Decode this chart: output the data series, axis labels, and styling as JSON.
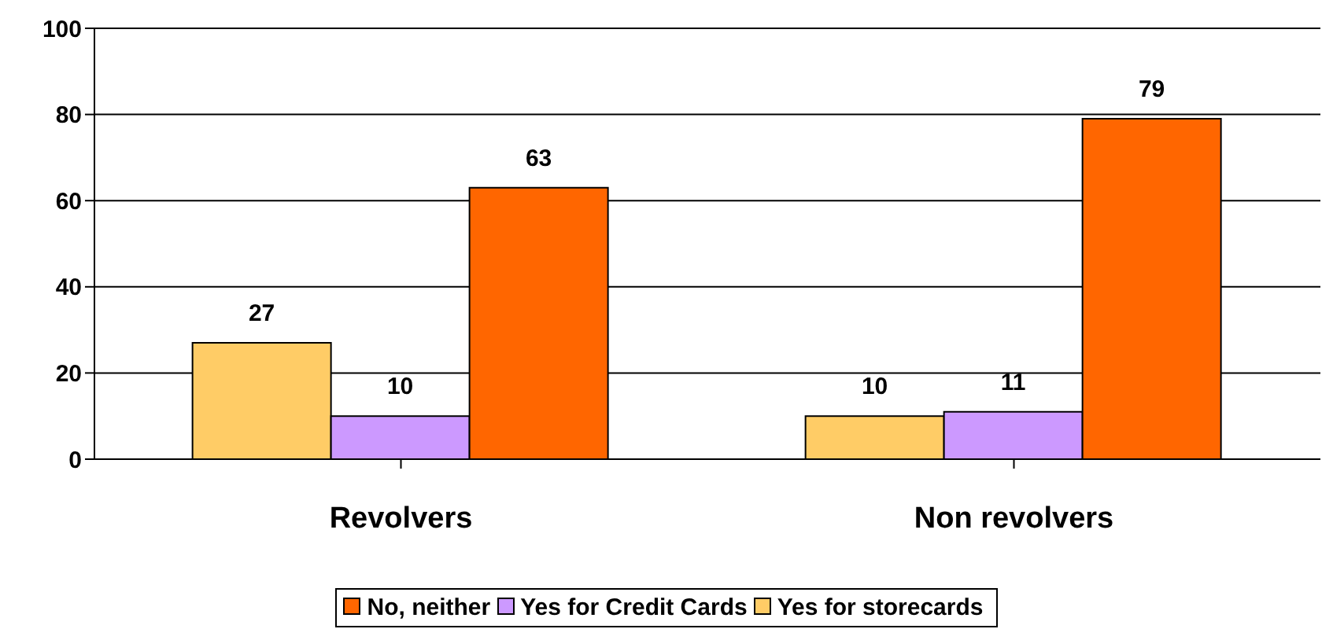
{
  "chart_data": {
    "type": "bar",
    "categories": [
      "Revolvers",
      "Non revolvers"
    ],
    "series": [
      {
        "name": "Yes for storecards",
        "color": "#ffcc66",
        "values": [
          27,
          10
        ]
      },
      {
        "name": "Yes for Credit Cards",
        "color": "#cc99ff",
        "values": [
          10,
          11
        ]
      },
      {
        "name": "No, neither",
        "color": "#ff6600",
        "values": [
          63,
          79
        ]
      }
    ],
    "ylim": [
      0,
      100
    ],
    "yticks": [
      0,
      20,
      40,
      60,
      80,
      100
    ],
    "grid": "y",
    "legend": "bottom",
    "data_labels": true
  }
}
